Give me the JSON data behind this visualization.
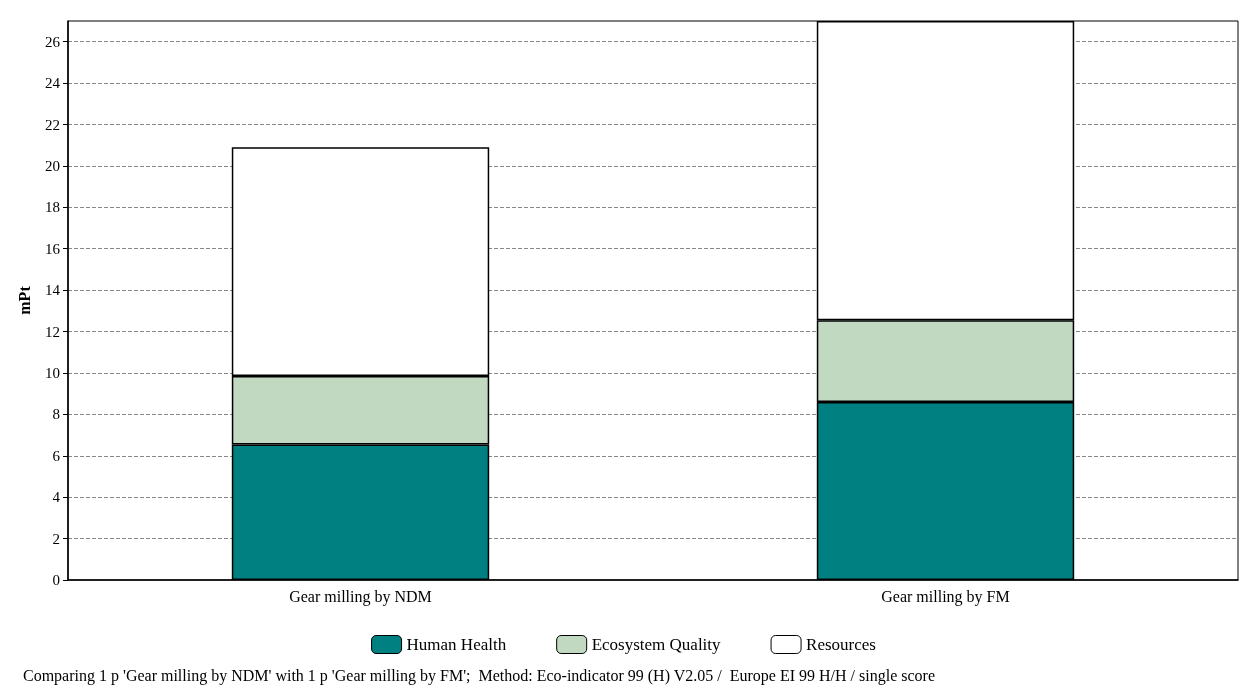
{
  "chart_data": {
    "type": "bar",
    "stacked": true,
    "ylabel": "mPt",
    "categories": [
      "Gear milling by NDM",
      "Gear milling by FM"
    ],
    "series": [
      {
        "name": "Human Health",
        "color": "#008080",
        "values": [
          6.55,
          8.6
        ]
      },
      {
        "name": "Ecosystem Quality",
        "color": "#c0d9c0",
        "values": [
          3.3,
          3.95
        ]
      },
      {
        "name": "Resources",
        "color": "#ffffff",
        "values": [
          11.05,
          14.45
        ]
      }
    ],
    "ylim": [
      0,
      27
    ],
    "yticks": [
      0,
      2,
      4,
      6,
      8,
      10,
      12,
      14,
      16,
      18,
      20,
      22,
      24,
      26
    ],
    "grid": "y",
    "legend": "bottom",
    "annotations": [
      "Comparing 1 p 'Gear milling by NDM' with 1 p 'Gear milling by FM';  Method: Eco-indicator 99 (H) V2.05 /  Europe EI 99 H/H / single score"
    ]
  }
}
